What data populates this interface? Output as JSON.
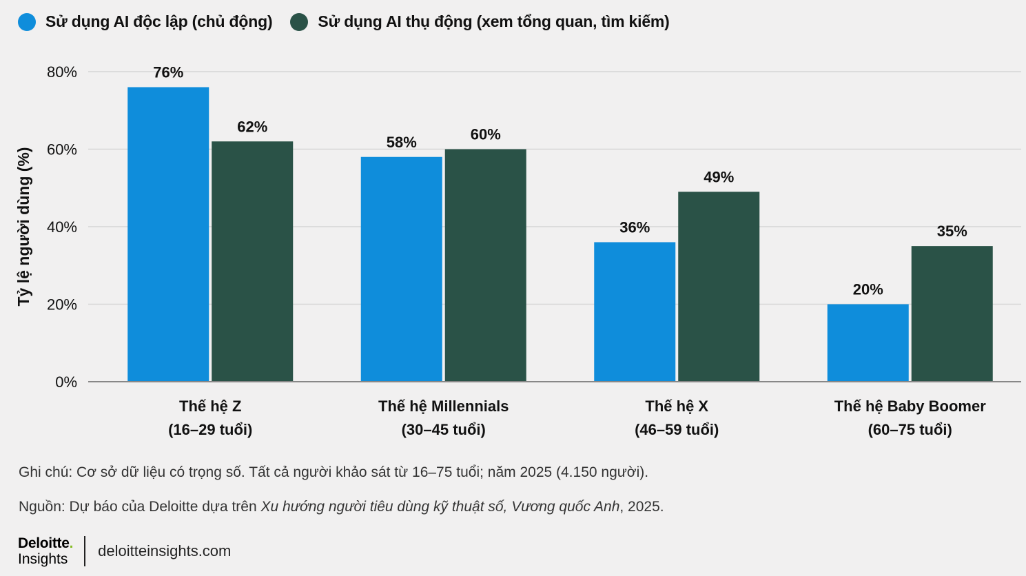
{
  "chart_data": {
    "type": "bar",
    "categories": [
      [
        "Thế hệ Z",
        "(16–29 tuổi)"
      ],
      [
        "Thế hệ Millennials",
        "(30–45 tuổi)"
      ],
      [
        "Thế hệ X",
        "(46–59 tuổi)"
      ],
      [
        "Thế hệ Baby Boomer",
        "(60–75 tuổi)"
      ]
    ],
    "series": [
      {
        "name": "Sử dụng AI độc lập (chủ động)",
        "values": [
          76,
          58,
          36,
          20
        ],
        "color": "#0f8ddb"
      },
      {
        "name": "Sử dụng AI thụ động (xem tổng quan, tìm kiếm)",
        "values": [
          62,
          60,
          49,
          35
        ],
        "color": "#2a5247"
      }
    ],
    "ylabel": "Tỷ lệ người dùng (%)",
    "xlabel": "",
    "ylim": [
      0,
      80
    ],
    "yticks": [
      0,
      20,
      40,
      60,
      80
    ],
    "ytick_labels": [
      "0%",
      "20%",
      "40%",
      "60%",
      "80%"
    ],
    "data_labels": [
      [
        "76%",
        "58%",
        "36%",
        "20%"
      ],
      [
        "62%",
        "60%",
        "49%",
        "35%"
      ]
    ],
    "grid": true,
    "legend_position": "top-left"
  },
  "notes": {
    "note": "Ghi chú: Cơ sở dữ liệu có trọng số. Tất cả người khảo sát từ 16–75 tuổi; năm 2025 (4.150 người).",
    "source_prefix": "Nguồn: Dự báo của Deloitte dựa trên ",
    "source_title": "Xu hướng người tiêu dùng kỹ thuật số, Vương quốc Anh",
    "source_suffix": ", 2025."
  },
  "footer": {
    "logo_word": "Deloitte",
    "logo_dot": ".",
    "logo_sub": "Insights",
    "url": "deloitteinsights.com"
  }
}
